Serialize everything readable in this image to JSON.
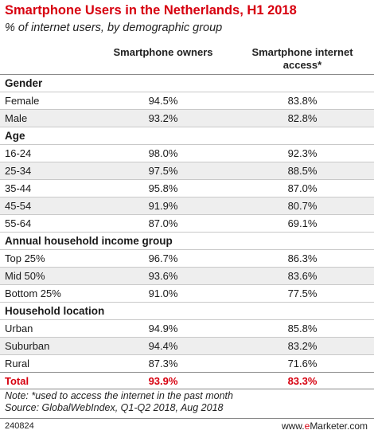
{
  "title": "Smartphone Users in the Netherlands, H1 2018",
  "subtitle": "% of internet users, by demographic group",
  "columns": [
    "Smartphone owners",
    "Smartphone internet access*"
  ],
  "chart_data": {
    "type": "table",
    "title": "Smartphone Users in the Netherlands, H1 2018",
    "subtitle": "% of internet users, by demographic group",
    "columns": [
      "",
      "Smartphone owners",
      "Smartphone internet access*"
    ],
    "sections": [
      {
        "name": "Gender",
        "rows": [
          {
            "label": "Female",
            "values": [
              "94.5%",
              "83.8%"
            ]
          },
          {
            "label": "Male",
            "values": [
              "93.2%",
              "82.8%"
            ]
          }
        ]
      },
      {
        "name": "Age",
        "rows": [
          {
            "label": "16-24",
            "values": [
              "98.0%",
              "92.3%"
            ]
          },
          {
            "label": "25-34",
            "values": [
              "97.5%",
              "88.5%"
            ]
          },
          {
            "label": "35-44",
            "values": [
              "95.8%",
              "87.0%"
            ]
          },
          {
            "label": "45-54",
            "values": [
              "91.9%",
              "80.7%"
            ]
          },
          {
            "label": "55-64",
            "values": [
              "87.0%",
              "69.1%"
            ]
          }
        ]
      },
      {
        "name": "Annual household income group",
        "rows": [
          {
            "label": "Top 25%",
            "values": [
              "96.7%",
              "86.3%"
            ]
          },
          {
            "label": "Mid 50%",
            "values": [
              "93.6%",
              "83.6%"
            ]
          },
          {
            "label": "Bottom 25%",
            "values": [
              "91.0%",
              "77.5%"
            ]
          }
        ]
      },
      {
        "name": "Household location",
        "rows": [
          {
            "label": "Urban",
            "values": [
              "94.9%",
              "85.8%"
            ]
          },
          {
            "label": "Suburban",
            "values": [
              "94.4%",
              "83.2%"
            ]
          },
          {
            "label": "Rural",
            "values": [
              "87.3%",
              "71.6%"
            ]
          }
        ]
      }
    ],
    "total": {
      "label": "Total",
      "values": [
        "93.9%",
        "83.3%"
      ]
    }
  },
  "note_line1": "Note: *used to access the internet in the past month",
  "note_line2": "Source: GlobalWebIndex, Q1-Q2 2018, Aug 2018",
  "chart_id": "240824",
  "brand_prefix": "www.",
  "brand_e": "e",
  "brand_suffix": "Marketer.com",
  "colors": {
    "accent": "#d7000f",
    "stripe": "#eeeeee",
    "rule": "#c9c9c9"
  }
}
